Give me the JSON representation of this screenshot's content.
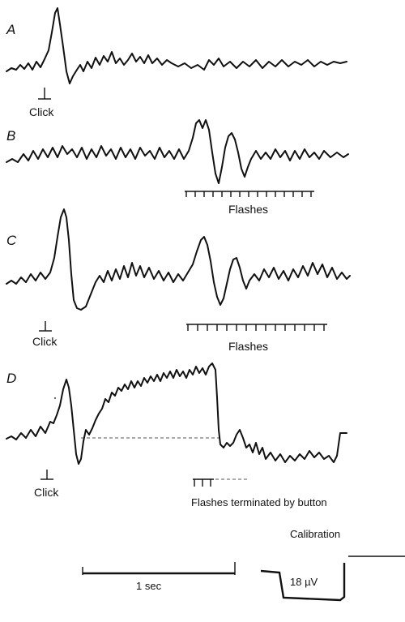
{
  "panels": {
    "a": {
      "letter": "A",
      "stimulus_label": "Click"
    },
    "b": {
      "letter": "B",
      "stimulus_label": "Flashes"
    },
    "c": {
      "letter": "C",
      "stimulus_label_1": "Click",
      "stimulus_label_2": "Flashes"
    },
    "d": {
      "letter": "D",
      "stimulus_label_1": "Click",
      "stimulus_label_2": "Flashes terminated by button"
    }
  },
  "calibration": {
    "title": "Calibration",
    "time_label": "1 sec",
    "voltage_label": "18 µV"
  }
}
